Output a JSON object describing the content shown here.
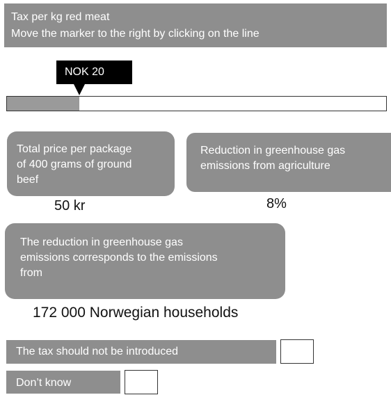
{
  "header": {
    "title": "Tax per kg red meat",
    "instruction": "Move the marker to the right by clicking on the line"
  },
  "slider": {
    "marker_label": "NOK 20",
    "fill_fraction": 0.19
  },
  "cards": {
    "price": {
      "line1": "Total price per package",
      "line2": "of 400 grams of ground",
      "line3": "beef",
      "value": "50 kr"
    },
    "reduction": {
      "line1": "Reduction in greenhouse gas",
      "line2": "emissions from agriculture",
      "value": "8%"
    },
    "households": {
      "line1": "The reduction in greenhouse gas",
      "line2": "emissions corresponds to the emissions",
      "line3": "from",
      "value": "172 000 Norwegian households"
    }
  },
  "options": {
    "not_introduced": "The tax should not be introduced",
    "dont_know": "Don’t  know"
  },
  "colors": {
    "panel_gray": "#8e8e8e",
    "fill_gray": "#9a9a9a",
    "marker_black": "#000000"
  }
}
